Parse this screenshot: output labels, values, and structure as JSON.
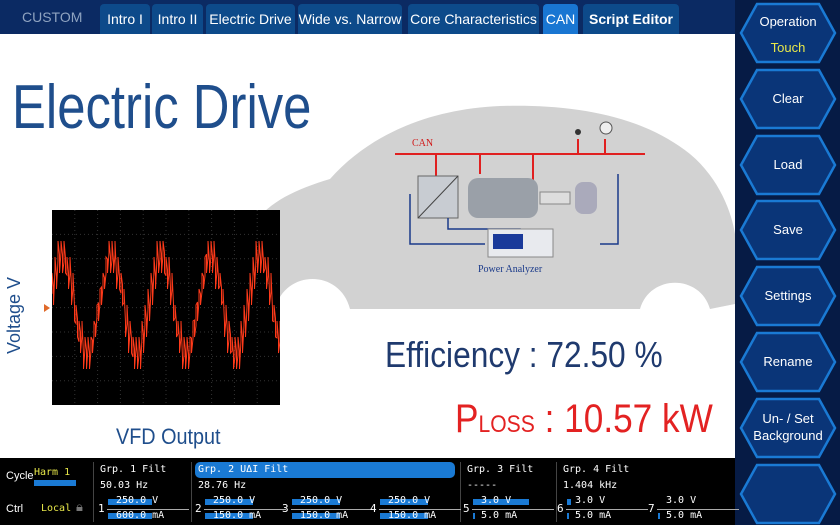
{
  "topbar": {
    "mode": "CUSTOM",
    "tabs": [
      {
        "label": "Intro I"
      },
      {
        "label": "Intro II"
      },
      {
        "label": "Electric Drive"
      },
      {
        "label": "Wide vs. Narrow"
      },
      {
        "label": "Core Characteristics"
      },
      {
        "label": "CAN",
        "active": true
      },
      {
        "label": "Script Editor"
      }
    ]
  },
  "main": {
    "title": "Electric Drive",
    "scope": {
      "ylabel": "Voltage V",
      "caption": "VFD Output"
    },
    "diagram": {
      "bus_label": "CAN",
      "analyzer_label": "Power Analyzer"
    },
    "efficiency": "Efficiency : 72.50 %",
    "ploss_p": "P",
    "ploss_sub": "LOSS",
    "ploss_value": " : 10.57 kW"
  },
  "sidebar": {
    "operation": "Operation",
    "operation_mode": "Touch",
    "buttons": [
      "Clear",
      "Load",
      "Save",
      "Settings",
      "Rename"
    ],
    "background_l1": "Un- / Set",
    "background_l2": "Background"
  },
  "status": {
    "cycle_label": "Cycle",
    "cycle_value": "Harm 1",
    "ctrl_label": "Ctrl",
    "ctrl_value": "Local",
    "groups": [
      {
        "name": "Grp. 1",
        "filt": "Filt",
        "freq": "50.03  Hz"
      },
      {
        "name": "Grp. 2",
        "extra": "UΔI",
        "filt": "Filt",
        "freq": "28.76  Hz"
      },
      {
        "name": "Grp. 3",
        "filt": "Filt",
        "freq": "-----"
      },
      {
        "name": "Grp. 4",
        "filt": "Filt",
        "freq": "1.404 kHz"
      }
    ],
    "elements": [
      {
        "n": "1",
        "v": "250.0 V",
        "i": "600.0 mA",
        "vf": 0.55,
        "if": 0.55
      },
      {
        "n": "2",
        "v": "250.0 V",
        "i": "150.0 mA",
        "vf": 0.6,
        "if": 0.6
      },
      {
        "n": "3",
        "v": "250.0 V",
        "i": "150.0 mA",
        "vf": 0.6,
        "if": 0.6
      },
      {
        "n": "4",
        "v": "250.0 V",
        "i": "150.0 mA",
        "vf": 0.6,
        "if": 0.6
      },
      {
        "n": "5",
        "v": "3.0 V",
        "i": "5.0 mA",
        "vf": 0.7,
        "if": 0.02
      },
      {
        "n": "6",
        "v": "3.0 V",
        "i": "5.0 mA",
        "vf": 0.05,
        "if": 0.02
      },
      {
        "n": "7",
        "v": "3.0 V",
        "i": "5.0 mA",
        "vf": 0.0,
        "if": 0.02
      }
    ]
  },
  "colors": {
    "accent": "#1976d2",
    "title": "#1f4e8c",
    "loss": "#e32222",
    "trace": "#ff3a1a"
  }
}
